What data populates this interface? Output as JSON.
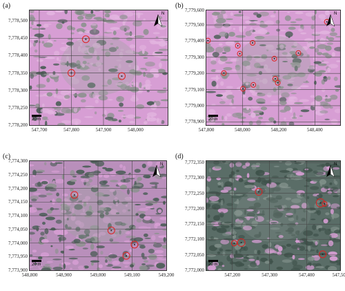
{
  "panels": [
    {
      "id": "a",
      "label": "(a)",
      "bg": "pink",
      "yticks": [
        "7,778,500",
        "7,778,450",
        "7,778,400",
        "7,778,350",
        "7,778,300",
        "7,778,250",
        "7,778,200"
      ],
      "xticks": [
        "547,700",
        "547,800",
        "547,900",
        "548,000"
      ],
      "scale_text": "20 m",
      "north": "N",
      "markers": [
        {
          "x": 547845,
          "y": 7778447,
          "r": 1
        },
        {
          "x": 547800,
          "y": 7778350,
          "r": 1
        },
        {
          "x": 547957,
          "y": 7778341,
          "r": 1
        }
      ],
      "xrange": [
        547670,
        548100
      ],
      "yrange": [
        7778200,
        7778530
      ]
    },
    {
      "id": "b",
      "label": "(b)",
      "bg": "pink",
      "yticks": [
        "7,779,600",
        "7,779,500",
        "7,779,400",
        "7,779,300",
        "7,779,200",
        "7,779,100",
        "7,779,000",
        "7,778,900"
      ],
      "xticks": [
        "547,800",
        "548,000",
        "548,200",
        "548,400"
      ],
      "scale_text": "20 m",
      "north": "N",
      "markers": [
        {
          "x": 548466,
          "y": 7779519,
          "r": 0.7
        },
        {
          "x": 547809,
          "y": 7779403,
          "r": 0.7
        },
        {
          "x": 547974,
          "y": 7779371,
          "r": 0.7
        },
        {
          "x": 548056,
          "y": 7779389,
          "r": 0.7
        },
        {
          "x": 547985,
          "y": 7779322,
          "r": 0.7
        },
        {
          "x": 548309,
          "y": 7779326,
          "r": 0.7
        },
        {
          "x": 548176,
          "y": 7779291,
          "r": 0.7
        },
        {
          "x": 547897,
          "y": 7779202,
          "r": 0.7
        },
        {
          "x": 548181,
          "y": 7779167,
          "r": 0.7
        },
        {
          "x": 548195,
          "y": 7779142,
          "r": 0.7
        },
        {
          "x": 548060,
          "y": 7779129,
          "r": 0.7
        },
        {
          "x": 548003,
          "y": 7779105,
          "r": 0.7
        }
      ],
      "xrange": [
        547800,
        548540
      ],
      "yrange": [
        7778880,
        7779590
      ]
    },
    {
      "id": "c",
      "label": "(c)",
      "bg": "mixed",
      "yticks": [
        "7,774,300",
        "7,774,250",
        "7,774,200",
        "7,774,150",
        "7,774,100",
        "7,774,050",
        "7,774,000",
        "7,773,950",
        "7,773,900"
      ],
      "xticks": [
        "548,800",
        "548,900",
        "549,000",
        "549,100",
        "549,200"
      ],
      "scale_text": "20 m",
      "north": "N",
      "markers": [
        {
          "x": 548931,
          "y": 7774176,
          "r": 1
        },
        {
          "x": 549039,
          "y": 7774046,
          "r": 1
        },
        {
          "x": 549107,
          "y": 7773994,
          "r": 1
        },
        {
          "x": 549083,
          "y": 7773953,
          "r": 1
        }
      ],
      "xrange": [
        548800,
        549200
      ],
      "yrange": [
        7773900,
        7774300
      ]
    },
    {
      "id": "d",
      "label": "(d)",
      "bg": "green",
      "yticks": [
        "7,772,350",
        "7,772,300",
        "7,772,250",
        "7,772,200",
        "7,772,150",
        "7,772,100",
        "7,772,050",
        "7,772,000"
      ],
      "xticks": [
        "547,200",
        "547,300",
        "547,400",
        "547,500"
      ],
      "scale_text": "20 m",
      "north": "N",
      "markers": [
        {
          "x": 547271,
          "y": 7772255,
          "r": 1
        },
        {
          "x": 547437,
          "y": 7772219,
          "r": 1.2
        },
        {
          "x": 547448,
          "y": 7772216,
          "r": 0.7
        },
        {
          "x": 547205,
          "y": 7772088,
          "r": 0.8
        },
        {
          "x": 547224,
          "y": 7772090,
          "r": 1.1
        },
        {
          "x": 547443,
          "y": 7772052,
          "r": 1
        }
      ],
      "xrange": [
        547130,
        547490
      ],
      "yrange": [
        7772000,
        7772355
      ]
    }
  ],
  "colors": {
    "pink": "#d79ed4",
    "grey": "#8e9290",
    "dark_green": "#4b5e57",
    "marker": "#e02020"
  }
}
